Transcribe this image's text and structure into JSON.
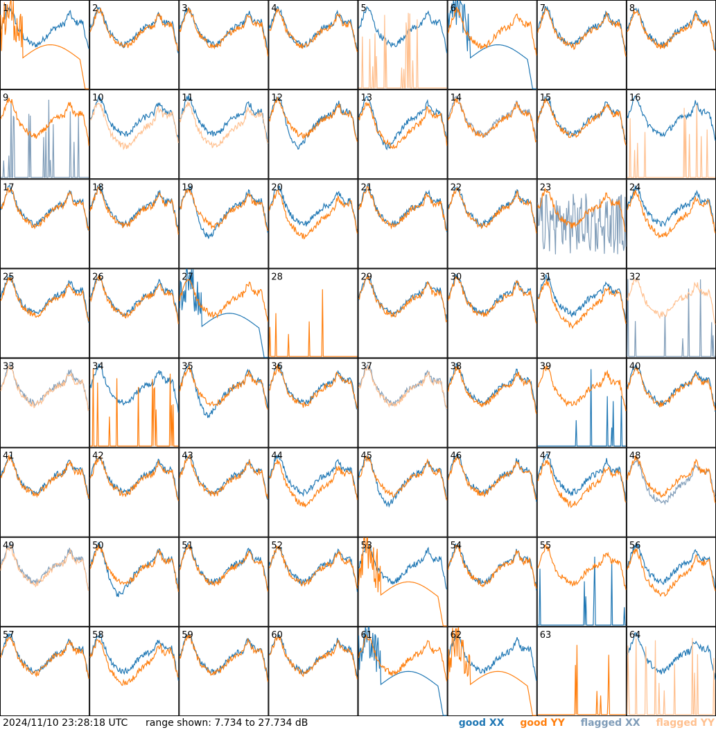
{
  "footer": {
    "timestamp": "2024/11/10 23:28:18 UTC",
    "range": "range shown: 7.734 to 27.734 dB"
  },
  "legend": [
    {
      "label": "good XX",
      "color": "#1f77b4"
    },
    {
      "label": "good YY",
      "color": "#ff7f0e"
    },
    {
      "label": "flagged XX",
      "color": "#7f9cb8"
    },
    {
      "label": "flagged YY",
      "color": "#ffc08f"
    }
  ],
  "chart_data": {
    "type": "line",
    "ylim": [
      7.734,
      27.734
    ],
    "units": "dB",
    "grid": "8x8 small multiples, one panel per input",
    "panels": [
      {
        "id": "1",
        "xx": "good",
        "yy": "good",
        "xx_shape": "normal",
        "yy_shape": "drop"
      },
      {
        "id": "2",
        "xx": "good",
        "yy": "good",
        "xx_shape": "normal",
        "yy_shape": "normal"
      },
      {
        "id": "3",
        "xx": "good",
        "yy": "good",
        "xx_shape": "normal",
        "yy_shape": "normal"
      },
      {
        "id": "4",
        "xx": "good",
        "yy": "good",
        "xx_shape": "normal",
        "yy_shape": "normal"
      },
      {
        "id": "5",
        "xx": "good",
        "yy": "flagged",
        "xx_shape": "normal",
        "yy_shape": "spikes"
      },
      {
        "id": "6",
        "xx": "good",
        "yy": "good",
        "xx_shape": "drop",
        "yy_shape": "normal"
      },
      {
        "id": "7",
        "xx": "good",
        "yy": "good",
        "xx_shape": "normal",
        "yy_shape": "normal"
      },
      {
        "id": "8",
        "xx": "good",
        "yy": "good",
        "xx_shape": "normal",
        "yy_shape": "normal"
      },
      {
        "id": "9",
        "xx": "flagged",
        "yy": "good",
        "xx_shape": "spikes",
        "yy_shape": "normal"
      },
      {
        "id": "10",
        "xx": "good",
        "yy": "flagged",
        "xx_shape": "normal",
        "yy_shape": "low"
      },
      {
        "id": "11",
        "xx": "good",
        "yy": "flagged",
        "xx_shape": "normal",
        "yy_shape": "low"
      },
      {
        "id": "12",
        "xx": "good",
        "yy": "good",
        "xx_shape": "dip",
        "yy_shape": "normal"
      },
      {
        "id": "13",
        "xx": "good",
        "yy": "good",
        "xx_shape": "dip",
        "yy_shape": "low"
      },
      {
        "id": "14",
        "xx": "flagged",
        "yy": "good",
        "xx_shape": "normal",
        "yy_shape": "normal"
      },
      {
        "id": "15",
        "xx": "good",
        "yy": "good",
        "xx_shape": "normal",
        "yy_shape": "normal"
      },
      {
        "id": "16",
        "xx": "good",
        "yy": "flagged",
        "xx_shape": "normal",
        "yy_shape": "spikes"
      },
      {
        "id": "17",
        "xx": "good",
        "yy": "good",
        "xx_shape": "normal",
        "yy_shape": "normal"
      },
      {
        "id": "18",
        "xx": "good",
        "yy": "good",
        "xx_shape": "normal",
        "yy_shape": "normal"
      },
      {
        "id": "19",
        "xx": "good",
        "yy": "good",
        "xx_shape": "dip",
        "yy_shape": "normal"
      },
      {
        "id": "20",
        "xx": "good",
        "yy": "good",
        "xx_shape": "normal",
        "yy_shape": "low"
      },
      {
        "id": "21",
        "xx": "good",
        "yy": "good",
        "xx_shape": "normal",
        "yy_shape": "normal"
      },
      {
        "id": "22",
        "xx": "good",
        "yy": "good",
        "xx_shape": "normal",
        "yy_shape": "normal"
      },
      {
        "id": "23",
        "xx": "flagged",
        "yy": "good",
        "xx_shape": "noise",
        "yy_shape": "normal"
      },
      {
        "id": "24",
        "xx": "good",
        "yy": "good",
        "xx_shape": "normal",
        "yy_shape": "low"
      },
      {
        "id": "25",
        "xx": "good",
        "yy": "good",
        "xx_shape": "normal",
        "yy_shape": "normal"
      },
      {
        "id": "26",
        "xx": "good",
        "yy": "good",
        "xx_shape": "normal",
        "yy_shape": "normal"
      },
      {
        "id": "27",
        "xx": "good",
        "yy": "good",
        "xx_shape": "drop",
        "yy_shape": "normal"
      },
      {
        "id": "28",
        "xx": "good",
        "yy": "good",
        "xx_shape": "none",
        "yy_shape": "spikes"
      },
      {
        "id": "29",
        "xx": "good",
        "yy": "good",
        "xx_shape": "normal",
        "yy_shape": "normal"
      },
      {
        "id": "30",
        "xx": "good",
        "yy": "good",
        "xx_shape": "normal",
        "yy_shape": "normal"
      },
      {
        "id": "31",
        "xx": "good",
        "yy": "good",
        "xx_shape": "normal",
        "yy_shape": "low"
      },
      {
        "id": "32",
        "xx": "flagged",
        "yy": "flagged",
        "xx_shape": "spikes",
        "yy_shape": "normal"
      },
      {
        "id": "33",
        "xx": "flagged",
        "yy": "flagged",
        "xx_shape": "normal",
        "yy_shape": "normal"
      },
      {
        "id": "34",
        "xx": "good",
        "yy": "good",
        "xx_shape": "normal",
        "yy_shape": "spikes"
      },
      {
        "id": "35",
        "xx": "good",
        "yy": "good",
        "xx_shape": "dip",
        "yy_shape": "normal"
      },
      {
        "id": "36",
        "xx": "good",
        "yy": "good",
        "xx_shape": "normal",
        "yy_shape": "normal"
      },
      {
        "id": "37",
        "xx": "flagged",
        "yy": "flagged",
        "xx_shape": "normal",
        "yy_shape": "normal"
      },
      {
        "id": "38",
        "xx": "good",
        "yy": "good",
        "xx_shape": "normal",
        "yy_shape": "normal"
      },
      {
        "id": "39",
        "xx": "good",
        "yy": "good",
        "xx_shape": "spikes",
        "yy_shape": "normal"
      },
      {
        "id": "40",
        "xx": "good",
        "yy": "good",
        "xx_shape": "normal",
        "yy_shape": "normal"
      },
      {
        "id": "41",
        "xx": "good",
        "yy": "good",
        "xx_shape": "normal",
        "yy_shape": "normal"
      },
      {
        "id": "42",
        "xx": "good",
        "yy": "good",
        "xx_shape": "normal",
        "yy_shape": "normal"
      },
      {
        "id": "43",
        "xx": "good",
        "yy": "good",
        "xx_shape": "normal",
        "yy_shape": "normal"
      },
      {
        "id": "44",
        "xx": "good",
        "yy": "good",
        "xx_shape": "normal",
        "yy_shape": "low"
      },
      {
        "id": "45",
        "xx": "good",
        "yy": "good",
        "xx_shape": "dip",
        "yy_shape": "normal"
      },
      {
        "id": "46",
        "xx": "good",
        "yy": "good",
        "xx_shape": "normal",
        "yy_shape": "normal"
      },
      {
        "id": "47",
        "xx": "good",
        "yy": "good",
        "xx_shape": "normal",
        "yy_shape": "low"
      },
      {
        "id": "48",
        "xx": "flagged",
        "yy": "good",
        "xx_shape": "low",
        "yy_shape": "normal"
      },
      {
        "id": "49",
        "xx": "flagged",
        "yy": "flagged",
        "xx_shape": "normal",
        "yy_shape": "normal"
      },
      {
        "id": "50",
        "xx": "good",
        "yy": "good",
        "xx_shape": "dip",
        "yy_shape": "normal"
      },
      {
        "id": "51",
        "xx": "good",
        "yy": "good",
        "xx_shape": "normal",
        "yy_shape": "normal"
      },
      {
        "id": "52",
        "xx": "good",
        "yy": "good",
        "xx_shape": "normal",
        "yy_shape": "normal"
      },
      {
        "id": "53",
        "xx": "good",
        "yy": "good",
        "xx_shape": "normal",
        "yy_shape": "drop"
      },
      {
        "id": "54",
        "xx": "good",
        "yy": "good",
        "xx_shape": "normal",
        "yy_shape": "normal"
      },
      {
        "id": "55",
        "xx": "good",
        "yy": "good",
        "xx_shape": "spikes",
        "yy_shape": "normal"
      },
      {
        "id": "56",
        "xx": "good",
        "yy": "good",
        "xx_shape": "normal",
        "yy_shape": "low"
      },
      {
        "id": "57",
        "xx": "good",
        "yy": "good",
        "xx_shape": "normal",
        "yy_shape": "normal"
      },
      {
        "id": "58",
        "xx": "good",
        "yy": "good",
        "xx_shape": "normal",
        "yy_shape": "low"
      },
      {
        "id": "59",
        "xx": "good",
        "yy": "good",
        "xx_shape": "normal",
        "yy_shape": "normal"
      },
      {
        "id": "60",
        "xx": "good",
        "yy": "good",
        "xx_shape": "normal",
        "yy_shape": "normal"
      },
      {
        "id": "61",
        "xx": "good",
        "yy": "good",
        "xx_shape": "drop",
        "yy_shape": "normal"
      },
      {
        "id": "62",
        "xx": "good",
        "yy": "good",
        "xx_shape": "normal",
        "yy_shape": "drop"
      },
      {
        "id": "63",
        "xx": "good",
        "yy": "good",
        "xx_shape": "none",
        "yy_shape": "spikes"
      },
      {
        "id": "64",
        "xx": "good",
        "yy": "flagged",
        "xx_shape": "normal",
        "yy_shape": "spikes"
      }
    ]
  }
}
